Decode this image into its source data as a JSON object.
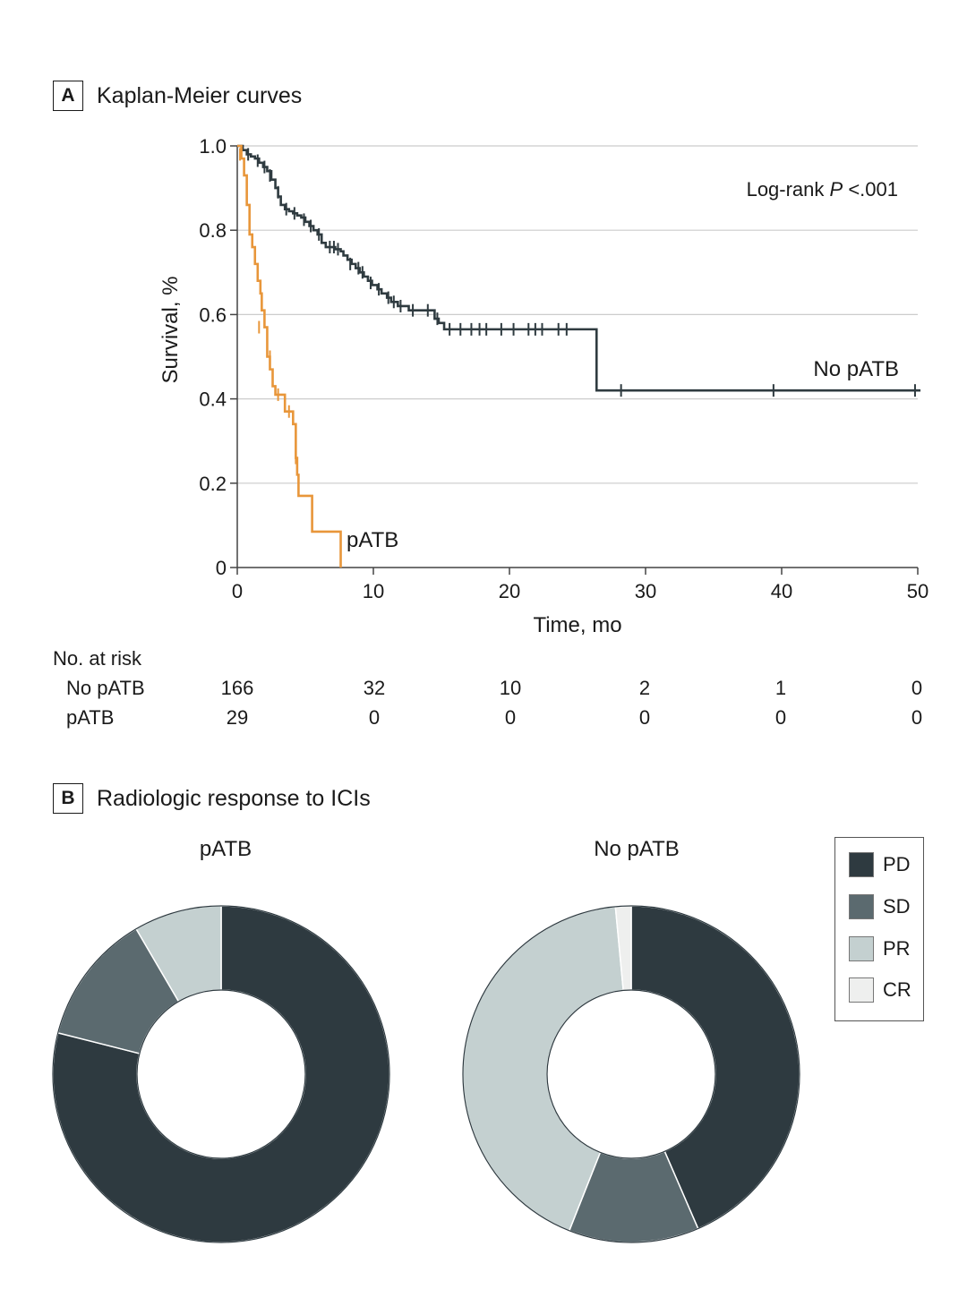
{
  "panel_a": {
    "letter": "A",
    "title": "Kaplan-Meier curves"
  },
  "panel_b": {
    "letter": "B",
    "title": "Radiologic response to ICIs"
  },
  "colors": {
    "no_patb": "#2f3b40",
    "patb": "#e8963a",
    "grid": "#cccccc",
    "axis": "#444444",
    "PD": "#2e3a40",
    "SD": "#5b6a6f",
    "PR": "#c4d0d0",
    "CR": "#eeefee"
  },
  "chart_data": [
    {
      "type": "line",
      "subtype": "kaplan-meier",
      "title": "Kaplan-Meier curves",
      "xlabel": "Time, mo",
      "ylabel": "Survival, %",
      "xlim": [
        0,
        50
      ],
      "ylim": [
        0,
        1.0
      ],
      "xticks": [
        0,
        10,
        20,
        30,
        40,
        50
      ],
      "yticks": [
        0,
        0.2,
        0.4,
        0.6,
        0.8,
        1.0
      ],
      "ytick_labels": [
        "0",
        "0.2",
        "0.4",
        "0.6",
        "0.8",
        "1.0"
      ],
      "grid": true,
      "annotation": {
        "prefix": "Log-rank ",
        "italic": "P",
        "suffix": " <.001"
      },
      "series": [
        {
          "name": "No pATB",
          "color": "#2f3b40",
          "steps": [
            [
              0,
              1.0
            ],
            [
              0.4,
              0.99
            ],
            [
              0.7,
              0.98
            ],
            [
              1.0,
              0.975
            ],
            [
              1.3,
              0.97
            ],
            [
              1.6,
              0.96
            ],
            [
              1.9,
              0.95
            ],
            [
              2.2,
              0.94
            ],
            [
              2.5,
              0.92
            ],
            [
              2.8,
              0.9
            ],
            [
              3.0,
              0.88
            ],
            [
              3.2,
              0.86
            ],
            [
              3.5,
              0.85
            ],
            [
              3.8,
              0.845
            ],
            [
              4.1,
              0.84
            ],
            [
              4.4,
              0.835
            ],
            [
              4.7,
              0.83
            ],
            [
              5.0,
              0.82
            ],
            [
              5.3,
              0.81
            ],
            [
              5.6,
              0.8
            ],
            [
              5.9,
              0.79
            ],
            [
              6.2,
              0.77
            ],
            [
              6.5,
              0.76
            ],
            [
              7.2,
              0.755
            ],
            [
              7.6,
              0.75
            ],
            [
              7.8,
              0.74
            ],
            [
              8.1,
              0.73
            ],
            [
              8.4,
              0.72
            ],
            [
              8.7,
              0.71
            ],
            [
              9.0,
              0.7
            ],
            [
              9.3,
              0.69
            ],
            [
              9.6,
              0.68
            ],
            [
              9.9,
              0.67
            ],
            [
              10.3,
              0.66
            ],
            [
              10.6,
              0.65
            ],
            [
              11.0,
              0.64
            ],
            [
              11.3,
              0.63
            ],
            [
              11.8,
              0.62
            ],
            [
              12.6,
              0.61
            ],
            [
              14.5,
              0.59
            ],
            [
              14.8,
              0.58
            ],
            [
              15.2,
              0.565
            ],
            [
              26.4,
              0.42
            ],
            [
              50.2,
              0.42
            ]
          ],
          "censors": [
            [
              0.8,
              0.98
            ],
            [
              1.5,
              0.965
            ],
            [
              2.0,
              0.95
            ],
            [
              2.4,
              0.93
            ],
            [
              3.0,
              0.89
            ],
            [
              3.6,
              0.85
            ],
            [
              4.2,
              0.84
            ],
            [
              4.9,
              0.825
            ],
            [
              5.4,
              0.81
            ],
            [
              6.0,
              0.79
            ],
            [
              6.8,
              0.76
            ],
            [
              7.1,
              0.76
            ],
            [
              7.4,
              0.755
            ],
            [
              8.3,
              0.72
            ],
            [
              8.9,
              0.71
            ],
            [
              9.2,
              0.7
            ],
            [
              9.8,
              0.675
            ],
            [
              10.4,
              0.66
            ],
            [
              11.1,
              0.64
            ],
            [
              11.5,
              0.63
            ],
            [
              12.0,
              0.62
            ],
            [
              12.9,
              0.61
            ],
            [
              14.0,
              0.61
            ],
            [
              14.7,
              0.59
            ],
            [
              15.6,
              0.565
            ],
            [
              16.4,
              0.565
            ],
            [
              17.2,
              0.565
            ],
            [
              17.8,
              0.565
            ],
            [
              18.3,
              0.565
            ],
            [
              19.4,
              0.565
            ],
            [
              20.3,
              0.565
            ],
            [
              21.4,
              0.565
            ],
            [
              21.9,
              0.565
            ],
            [
              22.4,
              0.565
            ],
            [
              23.6,
              0.565
            ],
            [
              24.2,
              0.565
            ],
            [
              28.2,
              0.42
            ],
            [
              39.4,
              0.42
            ],
            [
              49.8,
              0.42
            ]
          ],
          "label": "No pATB"
        },
        {
          "name": "pATB",
          "color": "#e8963a",
          "steps": [
            [
              0,
              1.0
            ],
            [
              0.3,
              0.97
            ],
            [
              0.5,
              0.93
            ],
            [
              0.7,
              0.86
            ],
            [
              0.9,
              0.79
            ],
            [
              1.1,
              0.76
            ],
            [
              1.3,
              0.72
            ],
            [
              1.5,
              0.68
            ],
            [
              1.7,
              0.65
            ],
            [
              1.8,
              0.61
            ],
            [
              2.0,
              0.57
            ],
            [
              2.2,
              0.5
            ],
            [
              2.4,
              0.47
            ],
            [
              2.6,
              0.43
            ],
            [
              2.8,
              0.41
            ],
            [
              3.5,
              0.37
            ],
            [
              4.1,
              0.34
            ],
            [
              4.3,
              0.26
            ],
            [
              4.4,
              0.22
            ],
            [
              4.5,
              0.17
            ],
            [
              5.5,
              0.085
            ],
            [
              7.6,
              0
            ]
          ],
          "censors": [
            [
              0.2,
              0.98
            ],
            [
              1.6,
              0.57
            ],
            [
              2.4,
              0.5
            ],
            [
              3.0,
              0.41
            ],
            [
              3.8,
              0.37
            ],
            [
              4.3,
              0.26
            ]
          ],
          "label": "pATB"
        }
      ],
      "risk_table": {
        "header": "No. at risk",
        "times": [
          0,
          10,
          20,
          30,
          40,
          50
        ],
        "rows": [
          {
            "label": "No pATB",
            "values": [
              "166",
              "32",
              "10",
              "2",
              "1",
              "0"
            ]
          },
          {
            "label": "pATB",
            "values": [
              "29",
              "0",
              "0",
              "0",
              "0",
              "0"
            ]
          }
        ]
      }
    },
    {
      "type": "pie",
      "subtype": "donut",
      "title": "pATB",
      "slices": [
        {
          "label": "PD",
          "value": 75
        },
        {
          "label": "SD",
          "value": 12
        },
        {
          "label": "PR",
          "value": 8
        },
        {
          "label": "CR",
          "value": 0
        }
      ]
    },
    {
      "type": "pie",
      "subtype": "donut",
      "title": "No pATB",
      "slices": [
        {
          "label": "PD",
          "value": 43.5
        },
        {
          "label": "SD",
          "value": 12.5
        },
        {
          "label": "PR",
          "value": 42.5
        },
        {
          "label": "CR",
          "value": 1.5
        }
      ]
    }
  ],
  "legend": {
    "placement": "right",
    "items": [
      {
        "label": "PD",
        "color": "#2e3a40"
      },
      {
        "label": "SD",
        "color": "#5b6a6f"
      },
      {
        "label": "PR",
        "color": "#c4d0d0"
      },
      {
        "label": "CR",
        "color": "#eeefee"
      }
    ]
  }
}
